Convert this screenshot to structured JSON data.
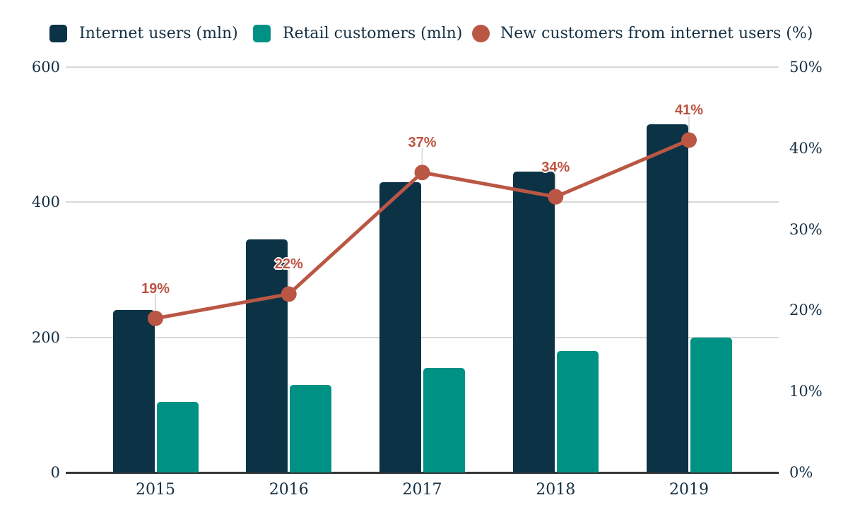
{
  "chart_data": {
    "type": "bar",
    "subtype": "grouped-bars-with-line-combo-dual-axis",
    "title": "",
    "categories": [
      "2015",
      "2016",
      "2017",
      "2018",
      "2019"
    ],
    "series": [
      {
        "name": "Internet users (mln)",
        "type": "bar",
        "axis": "left",
        "color": "#0c3246",
        "values": [
          240,
          345,
          430,
          445,
          515
        ]
      },
      {
        "name": "Retail customers (mln)",
        "type": "bar",
        "axis": "left",
        "color": "#009185",
        "values": [
          105,
          130,
          155,
          180,
          200
        ]
      },
      {
        "name": "New customers from internet users (%)",
        "type": "line",
        "axis": "right",
        "color": "#ba5744",
        "values": [
          19,
          22,
          37,
          34,
          41
        ],
        "point_labels": [
          "19%",
          "22%",
          "37%",
          "34%",
          "41%"
        ]
      }
    ],
    "left_axis": {
      "min": 0,
      "max": 600,
      "ticks": [
        "0",
        "200",
        "400",
        "600"
      ]
    },
    "right_axis": {
      "min": 0,
      "max": 50,
      "ticks": [
        "0%",
        "10%",
        "20%",
        "30%",
        "40%",
        "50%"
      ]
    },
    "grid": "horizontal gridlines at left-axis tick values, solid dark x-axis baseline",
    "legend_position": "top"
  },
  "colors": {
    "internet_bar": "#0c3246",
    "retail_bar": "#009185",
    "line": "#ba5744",
    "point_label_text": "#bc5340",
    "axis_text": "#142f43",
    "gridline": "#d8d8d8",
    "baseline": "#363636",
    "callout_line": "#dddddd",
    "background": "#ffffff"
  }
}
